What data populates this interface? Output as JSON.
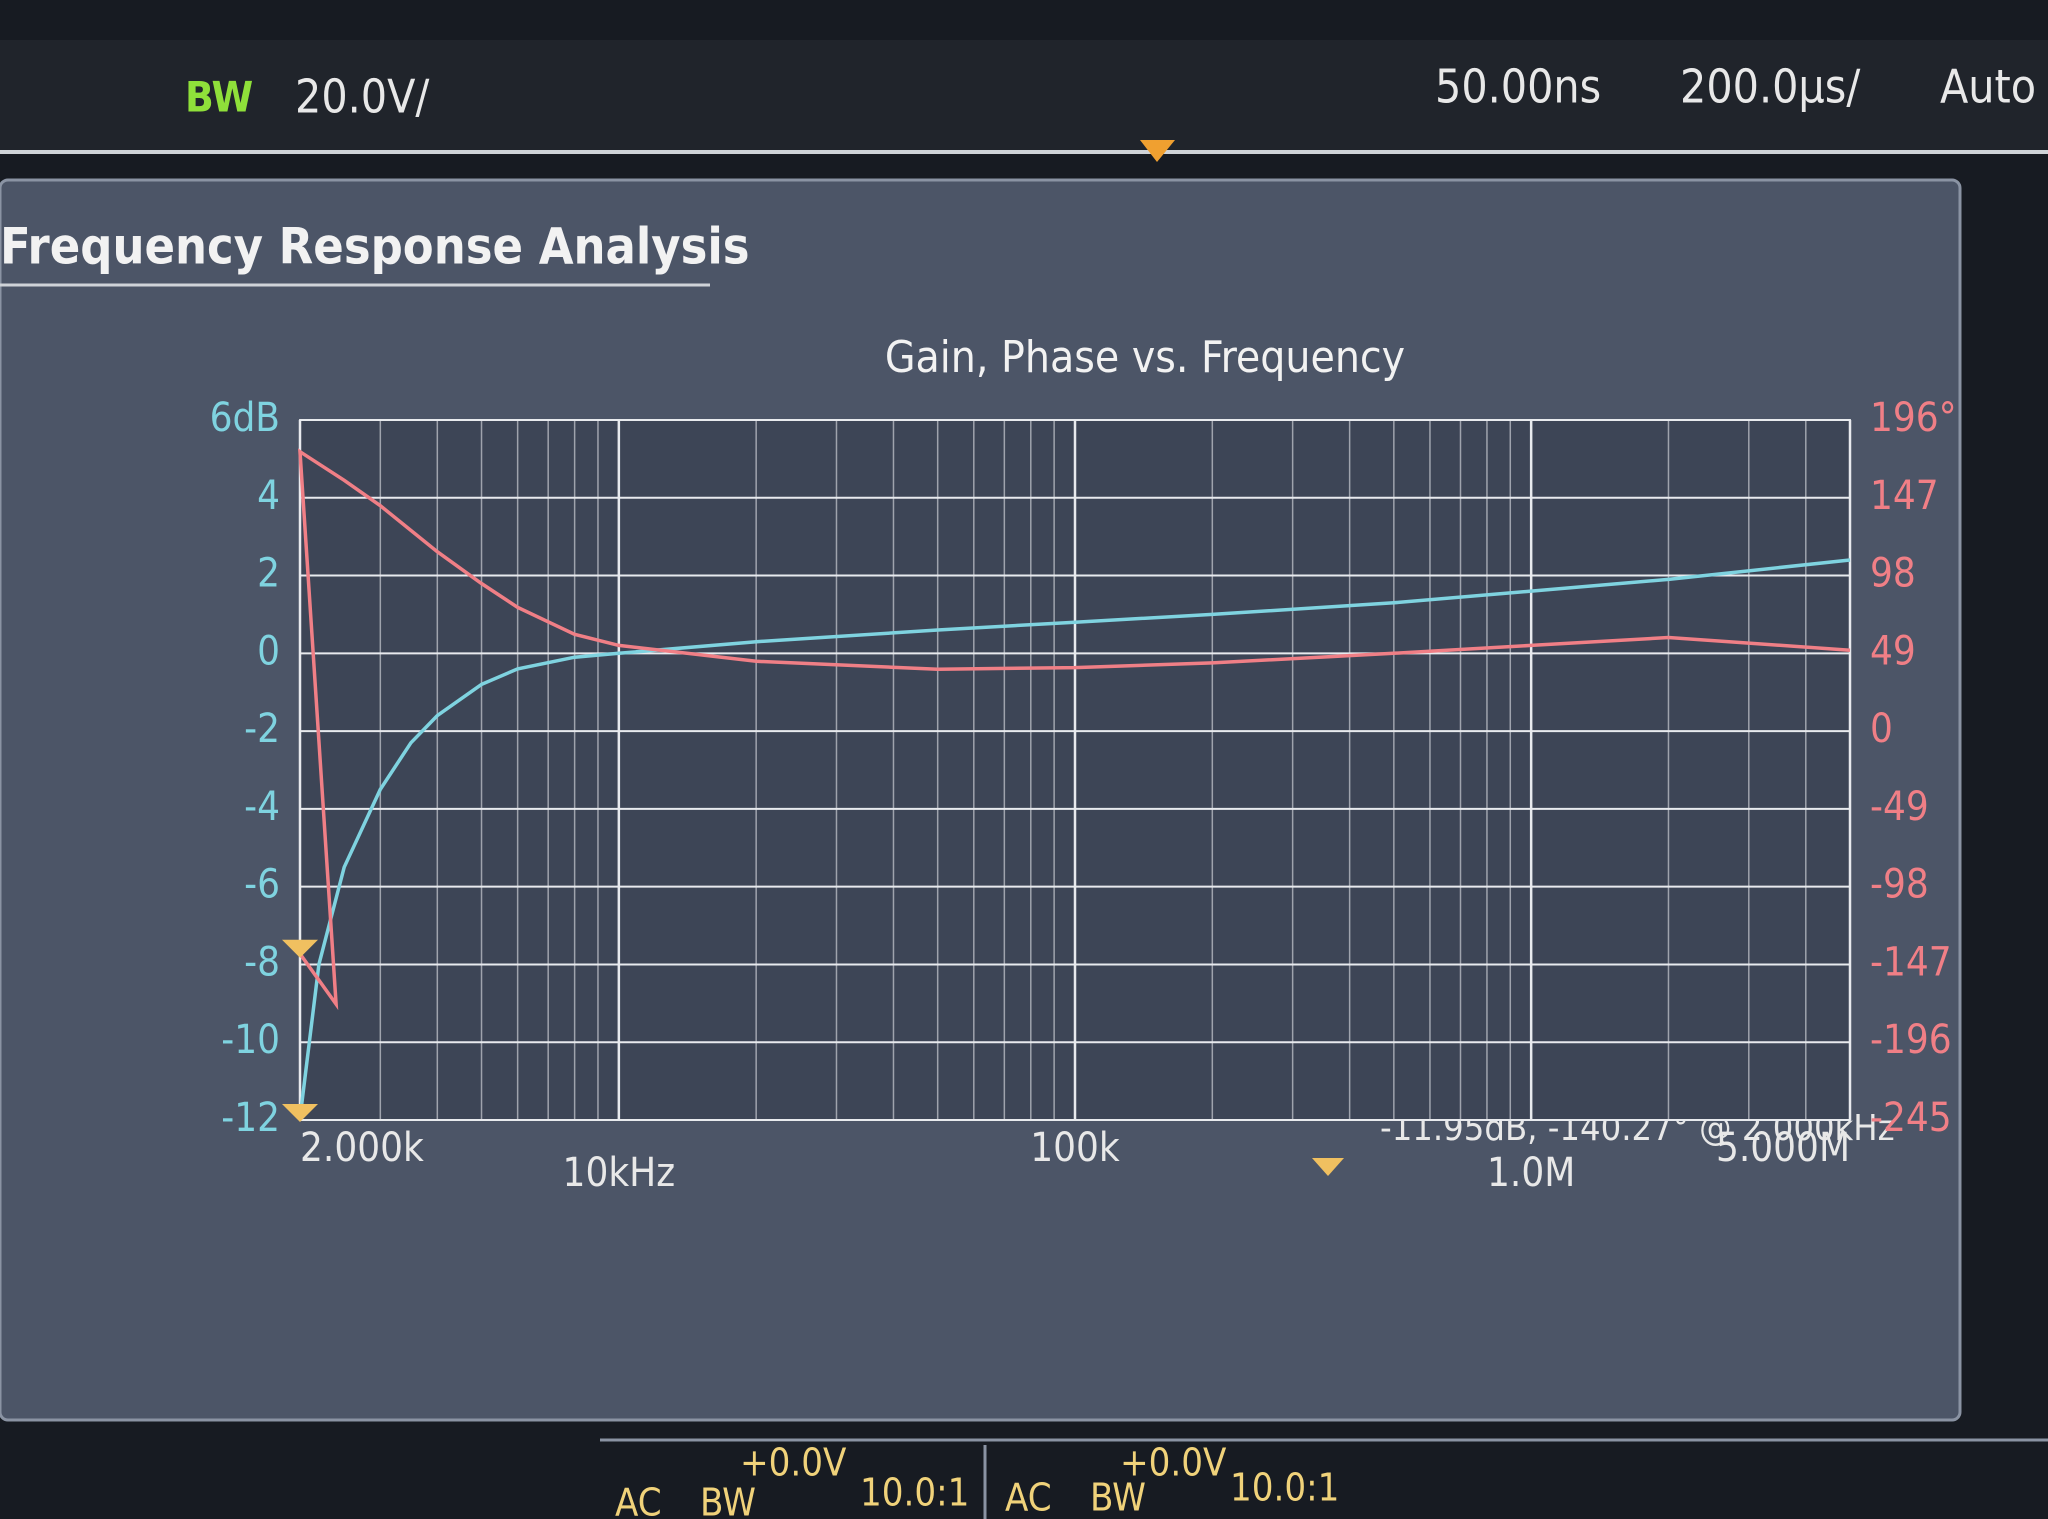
{
  "header": {
    "bw": "BW",
    "volts_per_div": "20.0V/",
    "delay": "50.00ns",
    "time_per_div": "200.0µs/",
    "trigger": "Auto"
  },
  "panel": {
    "title": "Frequency Response Analysis",
    "readout": "-11.95dB, -140.27° @ 2.000kHz"
  },
  "channels": [
    {
      "offset": "+0.0V",
      "coupling": "AC",
      "bw": "BW",
      "probe": "10.0:1"
    },
    {
      "offset": "+0.0V",
      "coupling": "AC",
      "bw": "BW",
      "probe": "10.0:1"
    }
  ],
  "chart_data": {
    "type": "line",
    "title": "Gain, Phase vs. Frequency",
    "xscale": "log",
    "grid": true,
    "xlim": [
      2000,
      5000000
    ],
    "xticks": [
      {
        "value": 2000,
        "label": "2.000k"
      },
      {
        "value": 10000,
        "label": "10kHz"
      },
      {
        "value": 100000,
        "label": "100k"
      },
      {
        "value": 1000000,
        "label": "1.0M"
      },
      {
        "value": 5000000,
        "label": "5.000M"
      }
    ],
    "ylim": [
      -12,
      6
    ],
    "yticks": [
      {
        "value": 6,
        "label": "6dB"
      },
      4,
      2,
      0,
      -2,
      -4,
      -6,
      -8,
      -10,
      -12
    ],
    "y2lim": [
      -245,
      196
    ],
    "y2ticks": [
      {
        "value": 196,
        "label": "196°"
      },
      147,
      98,
      49,
      0,
      -49,
      -98,
      -147,
      -196,
      -245
    ],
    "series": [
      {
        "color": "#7fd3e0",
        "x": [
          2000,
          2200,
          2500,
          3000,
          3500,
          4000,
          5000,
          6000,
          8000,
          10000,
          20000,
          50000,
          100000,
          200000,
          500000,
          1000000,
          2000000,
          5000000
        ],
        "values": [
          -11.95,
          -8,
          -5.5,
          -3.5,
          -2.3,
          -1.6,
          -0.8,
          -0.4,
          -0.1,
          0,
          0.3,
          0.6,
          0.8,
          1.0,
          1.3,
          1.6,
          1.9,
          2.4
        ]
      },
      {
        "color": "#f07f86",
        "axis": "y2",
        "x": [
          2000,
          2400,
          2000,
          2500,
          3000,
          4000,
          5000,
          6000,
          8000,
          10000,
          20000,
          50000,
          100000,
          200000,
          500000,
          1000000,
          2000000,
          5000000
        ],
        "values": [
          -140.27,
          -172,
          176,
          158,
          142,
          113,
          93,
          78,
          61,
          54,
          44,
          39,
          40,
          43,
          49,
          54,
          59,
          51
        ]
      }
    ]
  }
}
